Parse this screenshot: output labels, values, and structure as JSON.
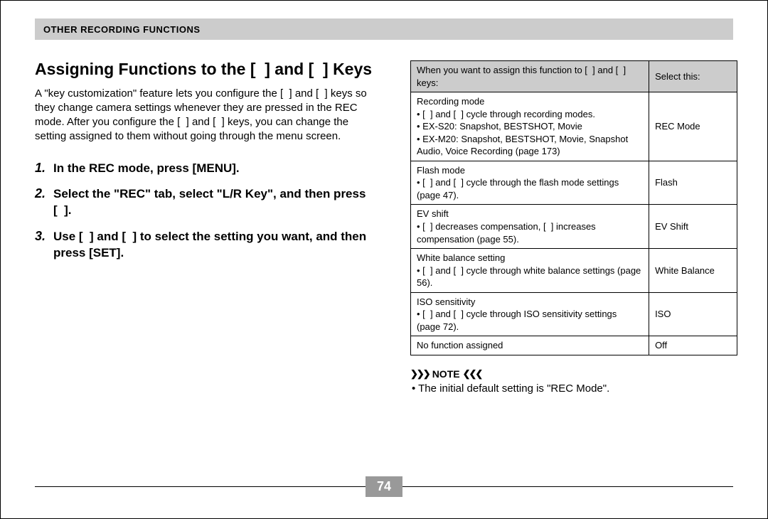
{
  "header": {
    "title": "OTHER RECORDING FUNCTIONS"
  },
  "left": {
    "heading": "Assigning Functions to the [  ] and [  ] Keys",
    "intro": "A \"key customization\" feature lets you configure the [  ] and [  ] keys so they change camera settings whenever they are pressed in the REC mode. After you configure the [  ] and [  ] keys, you can change the setting assigned to them without going through the menu screen.",
    "steps": [
      {
        "num": "1.",
        "text": "In the REC mode, press [MENU]."
      },
      {
        "num": "2.",
        "text": "Select the \"REC\" tab, select \"L/R Key\", and then press [  ]."
      },
      {
        "num": "3.",
        "text": "Use [  ] and [  ] to select the setting you want, and then press [SET]."
      }
    ]
  },
  "table": {
    "header_left": "When you want to assign this function to [  ] and [  ] keys:",
    "header_right": "Select this:",
    "rows": [
      {
        "left": "Recording mode\n• [  ] and [  ] cycle through recording modes.\n• EX-S20: Snapshot, BESTSHOT, Movie\n• EX-M20: Snapshot, BESTSHOT, Movie, Snapshot Audio, Voice Recording (page 173)",
        "right": "REC Mode"
      },
      {
        "left": "Flash mode\n• [  ] and [  ] cycle through the flash mode settings (page 47).",
        "right": "Flash"
      },
      {
        "left": "EV shift\n• [  ] decreases compensation, [  ] increases compensation (page 55).",
        "right": "EV Shift"
      },
      {
        "left": "White balance setting\n• [  ] and [  ] cycle through white balance settings (page 56).",
        "right": "White Balance"
      },
      {
        "left": "ISO sensitivity\n• [  ] and [  ] cycle through ISO sensitivity settings (page 72).",
        "right": "ISO"
      },
      {
        "left": "No function assigned",
        "right": "Off"
      }
    ]
  },
  "note": {
    "label": "NOTE",
    "text": "• The initial default setting is \"REC Mode\"."
  },
  "page_number": "74"
}
